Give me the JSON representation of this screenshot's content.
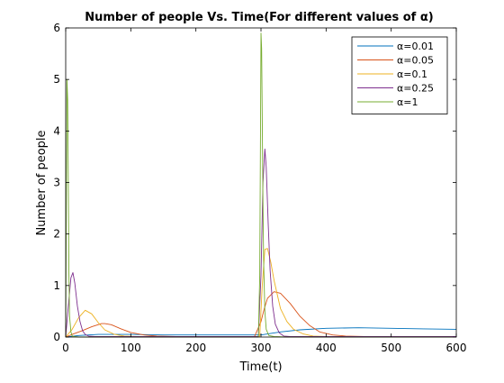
{
  "chart_data": {
    "type": "line",
    "title": "Number of people Vs. Time(For different values of α)",
    "xlabel": "Time(t)",
    "ylabel": "Number of people",
    "xlim": [
      0,
      600
    ],
    "ylim": [
      0,
      6
    ],
    "xticks": [
      0,
      100,
      200,
      300,
      400,
      500,
      600
    ],
    "yticks": [
      0,
      1,
      2,
      3,
      4,
      5,
      6
    ],
    "grid": false,
    "legend_position": "top-right",
    "series": [
      {
        "name": "α=0.01",
        "color": "#0072BD",
        "x": [
          0,
          20,
          50,
          100,
          150,
          200,
          250,
          290,
          300,
          310,
          330,
          360,
          400,
          450,
          500,
          550,
          600
        ],
        "y": [
          0,
          0.03,
          0.05,
          0.05,
          0.04,
          0.04,
          0.04,
          0.04,
          0.04,
          0.06,
          0.1,
          0.14,
          0.17,
          0.18,
          0.17,
          0.16,
          0.15
        ]
      },
      {
        "name": "α=0.05",
        "color": "#D95319",
        "x": [
          0,
          10,
          25,
          40,
          55,
          60,
          70,
          85,
          100,
          120,
          140,
          170,
          200,
          250,
          290,
          300,
          305,
          310,
          320,
          330,
          345,
          360,
          375,
          390,
          410,
          430,
          460,
          500,
          550,
          600
        ],
        "y": [
          0,
          0.05,
          0.12,
          0.2,
          0.26,
          0.26,
          0.24,
          0.16,
          0.09,
          0.04,
          0.02,
          0.01,
          0.01,
          0.01,
          0.01,
          0.3,
          0.55,
          0.75,
          0.88,
          0.85,
          0.65,
          0.4,
          0.22,
          0.1,
          0.04,
          0.02,
          0.01,
          0.01,
          0.01,
          0.01
        ]
      },
      {
        "name": "α=0.1",
        "color": "#EDB120",
        "x": [
          0,
          10,
          20,
          30,
          40,
          50,
          60,
          75,
          90,
          110,
          130,
          160,
          200,
          250,
          298,
          302,
          306,
          310,
          315,
          320,
          330,
          340,
          350,
          365,
          380,
          400,
          430,
          500,
          600
        ],
        "y": [
          0,
          0.15,
          0.38,
          0.52,
          0.45,
          0.28,
          0.14,
          0.05,
          0.02,
          0.01,
          0.01,
          0.01,
          0.01,
          0.01,
          0.01,
          1.0,
          1.7,
          1.72,
          1.45,
          1.1,
          0.55,
          0.3,
          0.15,
          0.06,
          0.02,
          0.01,
          0.01,
          0.01,
          0.01
        ]
      },
      {
        "name": "α=0.25",
        "color": "#7E2F8E",
        "x": [
          0,
          4,
          8,
          11,
          14,
          18,
          22,
          26,
          30,
          35,
          45,
          60,
          100,
          200,
          296,
          300,
          303,
          306,
          308,
          311,
          314,
          318,
          322,
          328,
          335,
          345,
          360,
          400,
          500,
          600
        ],
        "y": [
          0,
          0.6,
          1.15,
          1.25,
          1.05,
          0.6,
          0.3,
          0.12,
          0.05,
          0.02,
          0.01,
          0.01,
          0.01,
          0.01,
          0.01,
          1.2,
          3.0,
          3.65,
          3.3,
          2.2,
          1.3,
          0.6,
          0.25,
          0.08,
          0.02,
          0.01,
          0.01,
          0.01,
          0.01,
          0.01
        ]
      },
      {
        "name": "α=1",
        "color": "#77AC30",
        "x": [
          0,
          1,
          2,
          3,
          4,
          5,
          6,
          8,
          10,
          14,
          20,
          50,
          150,
          296,
          298,
          299,
          300,
          301,
          302,
          303,
          304,
          306,
          308,
          312,
          320,
          340,
          400,
          500,
          600
        ],
        "y": [
          0,
          2.5,
          5.0,
          4.6,
          3.0,
          1.2,
          0.4,
          0.1,
          0.02,
          0.01,
          0.0,
          0.0,
          0.0,
          0.0,
          1.2,
          3.5,
          5.9,
          5.6,
          4.2,
          2.6,
          1.5,
          0.5,
          0.15,
          0.03,
          0.01,
          0.0,
          0.0,
          0.0,
          0.0
        ]
      }
    ]
  }
}
